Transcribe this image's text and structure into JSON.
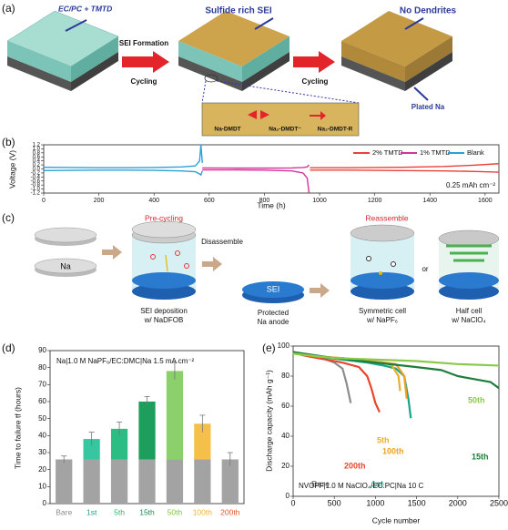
{
  "panel_a": {
    "label": "(a)",
    "electrolyte": "EC/PC + TMTD",
    "arrow1_top": "SEI Formation",
    "arrow1_bottom": "Cycling",
    "block2_label": "Sulfide rich SEI",
    "arrow2": "Cycling",
    "block3_label": "No Dendrites",
    "plated": "Plated Na",
    "molecules": [
      "Na-DMDT",
      "Na₂-DMDT⁻",
      "Na₂-DMDT-R"
    ]
  },
  "panel_c": {
    "label": "(c)",
    "pre_cycling": "Pre-cycling",
    "reassemble": "Reassemble",
    "na": "Na",
    "disassemble": "Disassemble",
    "sei": "SEI",
    "or": "or",
    "sei_deposition": [
      "SEI deposition",
      "w/ NaDFOB"
    ],
    "protected": [
      "Protected",
      "Na anode"
    ],
    "symmetric": [
      "Symmetric cell",
      "w/ NaPF₆"
    ],
    "half": [
      "Half cell",
      "w/ NaClO₄"
    ]
  },
  "chart_data": [
    {
      "type": "line",
      "panel_label": "(b)",
      "xlabel": "Time (h)",
      "ylabel": "Voltage (V)",
      "annotation": "0.25 mAh cm⁻²",
      "xlim": [
        0,
        1650
      ],
      "xticks": [
        0,
        200,
        400,
        600,
        800,
        1000,
        1200,
        1400,
        1600
      ],
      "ylim": [
        -1.2,
        1.2
      ],
      "yticks": [
        1.2,
        {
          "value": 1,
          "label": "1.0"
        },
        0.8,
        0.6,
        0.4,
        0.2,
        {
          "value": 0,
          "label": "0.0"
        },
        -0.2,
        -0.4,
        -0.6,
        -0.8,
        {
          "value": -1,
          "label": "-1.0"
        },
        -1.2
      ],
      "legend": "upper right",
      "series": [
        {
          "name": "2% TMTD",
          "color": "#e8403a",
          "x": [
            965,
            1100,
            1300,
            1450,
            1550,
            1650
          ],
          "values": [
            0.06,
            0.06,
            0.08,
            0.12,
            0.18,
            0.26
          ],
          "lower": [
            -0.06,
            -0.06,
            -0.08,
            -0.1,
            -0.12,
            -0.16
          ]
        },
        {
          "name": "1% TMTD",
          "color": "#d6339a",
          "x": [
            575,
            700,
            800,
            900,
            940,
            955,
            962
          ],
          "values": [
            0.05,
            0.04,
            0.04,
            0.05,
            0.07,
            0.1,
            0.2
          ],
          "lower": [
            -0.05,
            -0.05,
            -0.06,
            -0.1,
            -0.2,
            -0.45,
            -1.2
          ]
        },
        {
          "name": "Blank",
          "color": "#2e9fd6",
          "x": [
            0,
            100,
            200,
            300,
            400,
            500,
            550,
            565,
            570,
            575
          ],
          "values": [
            0.08,
            0.07,
            0.06,
            0.06,
            0.07,
            0.1,
            0.15,
            0.4,
            1.2,
            0.3
          ],
          "lower": [
            -0.08,
            -0.07,
            -0.06,
            -0.06,
            -0.07,
            -0.1,
            -0.14,
            -0.25,
            -0.3,
            -0.1
          ]
        }
      ]
    },
    {
      "type": "bar",
      "stacked": true,
      "panel_label": "(d)",
      "ylabel": "Time to failure tf (hours)",
      "annotation": "Na|1.0 M NaPF₆/EC:DMC|Na 1.5 mA cm⁻²",
      "categories": [
        "Bare",
        "1st",
        "5th",
        "15th",
        "50th",
        "100th",
        "200th"
      ],
      "label_colors": [
        "#8c8c8c",
        "#17a589",
        "#2cb56e",
        "#1e8a4c",
        "#7cc448",
        "#f0b030",
        "#e8552c"
      ],
      "ylim": [
        0,
        90
      ],
      "yticks": [
        0,
        10,
        20,
        30,
        40,
        50,
        60,
        70,
        80,
        90
      ],
      "series": [
        {
          "color": "#a3a3a3",
          "values": [
            26,
            26,
            26,
            26,
            26,
            26,
            26
          ]
        },
        {
          "colors": [
            "#a3a3a3",
            "#36c6a0",
            "#2cbd85",
            "#1e9e5c",
            "#8bd06b",
            "#f4c04a",
            "#a3a3a3"
          ],
          "values": [
            0,
            12,
            18,
            34,
            52,
            21,
            0
          ],
          "errors": [
            2,
            4,
            4,
            3,
            5,
            5,
            4
          ]
        }
      ]
    },
    {
      "type": "line",
      "panel_label": "(e)",
      "xlabel": "Cycle number",
      "ylabel": "Discharge capacity (mAh g⁻¹)",
      "annotation": "NVOPF|1.0 M NaClO₄/EC:PC|Na 10 C",
      "xlim": [
        0,
        2500
      ],
      "xticks": [
        0,
        500,
        1000,
        1500,
        2000,
        2500
      ],
      "ylim": [
        0,
        100
      ],
      "yticks": [
        0,
        20,
        40,
        60,
        80,
        100
      ],
      "series": [
        {
          "name": "Bare",
          "color": "#8c8c8c",
          "x": [
            0,
            100,
            200,
            300,
            400,
            500,
            600,
            650,
            700
          ],
          "values": [
            96,
            94,
            93,
            92,
            91,
            89,
            85,
            75,
            62
          ]
        },
        {
          "name": "200th",
          "color": "#e8452c",
          "x": [
            0,
            200,
            400,
            600,
            800,
            900,
            950,
            1000,
            1050
          ],
          "values": [
            96,
            93,
            91,
            89,
            86,
            80,
            72,
            62,
            56
          ]
        },
        {
          "name": "1st",
          "color": "#17a589",
          "x": [
            0,
            300,
            600,
            900,
            1100,
            1250,
            1350,
            1400,
            1430
          ],
          "values": [
            96,
            93,
            91,
            89,
            87,
            85,
            80,
            65,
            52
          ]
        },
        {
          "name": "5th",
          "color": "#e8b030",
          "x": [
            0,
            300,
            600,
            900,
            1100,
            1200,
            1280,
            1300
          ],
          "values": [
            96,
            93,
            92,
            90,
            89,
            87,
            80,
            70
          ]
        },
        {
          "name": "100th",
          "color": "#f0a020",
          "x": [
            0,
            300,
            600,
            900,
            1100,
            1250,
            1350,
            1380
          ],
          "values": [
            95,
            93,
            92,
            90,
            89,
            88,
            80,
            65
          ]
        },
        {
          "name": "15th",
          "color": "#1e7d3c",
          "x": [
            0,
            500,
            1000,
            1500,
            1800,
            2000,
            2200,
            2400,
            2500
          ],
          "values": [
            96,
            92,
            89,
            86,
            84,
            80,
            78,
            76,
            72
          ]
        },
        {
          "name": "50th",
          "color": "#8cc84b",
          "x": [
            0,
            500,
            1000,
            1500,
            2000,
            2500
          ],
          "values": [
            95,
            92,
            91,
            90,
            88,
            87
          ]
        }
      ]
    }
  ]
}
